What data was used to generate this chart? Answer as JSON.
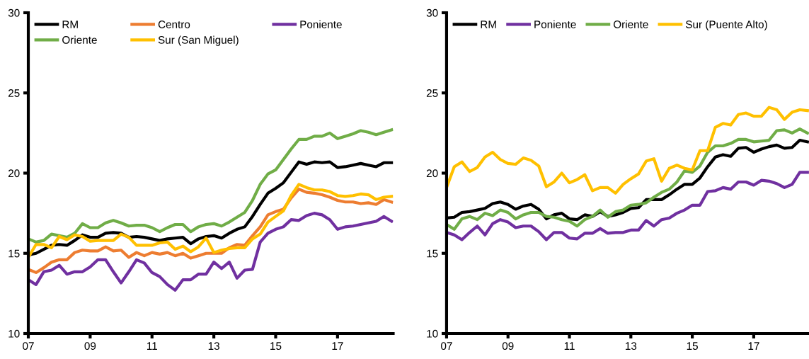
{
  "chart_data": [
    {
      "type": "line",
      "x": [
        2007,
        2007.25,
        2007.5,
        2007.75,
        2008,
        2008.25,
        2008.5,
        2008.75,
        2009,
        2009.25,
        2009.5,
        2009.75,
        2010,
        2010.25,
        2010.5,
        2010.75,
        2011,
        2011.25,
        2011.5,
        2011.75,
        2012,
        2012.25,
        2012.5,
        2012.75,
        2013,
        2013.25,
        2013.5,
        2013.75,
        2014,
        2014.25,
        2014.5,
        2014.75,
        2015,
        2015.25,
        2015.5,
        2015.75,
        2016,
        2016.25,
        2016.5,
        2016.75,
        2017,
        2017.25,
        2017.5,
        2017.75,
        2018,
        2018.25,
        2018.5,
        2018.75
      ],
      "xlim": [
        2007,
        2018.8
      ],
      "xticks": [
        {
          "value": 2007,
          "label": "07"
        },
        {
          "value": 2009,
          "label": "09"
        },
        {
          "value": 2011,
          "label": "11"
        },
        {
          "value": 2013,
          "label": "13"
        },
        {
          "value": 2015,
          "label": "15"
        },
        {
          "value": 2017,
          "label": "17"
        }
      ],
      "ylim": [
        10,
        30
      ],
      "yticks": [
        10,
        15,
        20,
        25,
        30
      ],
      "legend": "top left",
      "grid": false,
      "marker": "none",
      "line_style": "solid",
      "series": [
        {
          "name": "RM",
          "color": "#000000",
          "values": [
            14.9,
            15.0,
            15.25,
            15.5,
            15.55,
            15.5,
            15.8,
            16.15,
            16.0,
            16.0,
            16.25,
            16.3,
            16.25,
            16.0,
            16.05,
            16.0,
            15.9,
            15.8,
            15.9,
            15.95,
            16.0,
            15.6,
            15.9,
            16.05,
            16.1,
            15.95,
            16.25,
            16.5,
            16.65,
            17.3,
            18.05,
            18.75,
            19.05,
            19.4,
            20.05,
            20.7,
            20.55,
            20.7,
            20.65,
            20.7,
            20.35,
            20.4,
            20.5,
            20.6,
            20.5,
            20.4,
            20.65,
            20.65
          ]
        },
        {
          "name": "Centro",
          "color": "#ed7d31",
          "values": [
            14.0,
            13.8,
            14.1,
            14.45,
            14.6,
            14.6,
            15.05,
            15.2,
            15.15,
            15.15,
            15.4,
            15.15,
            15.2,
            14.75,
            15.05,
            14.85,
            15.05,
            14.95,
            15.05,
            14.85,
            15.0,
            14.7,
            14.85,
            15.0,
            15.0,
            15.0,
            15.35,
            15.55,
            15.5,
            16.1,
            16.65,
            17.4,
            17.6,
            17.75,
            18.45,
            19.0,
            18.8,
            18.75,
            18.65,
            18.5,
            18.3,
            18.2,
            18.2,
            18.1,
            18.15,
            18.05,
            18.35,
            18.2
          ]
        },
        {
          "name": "Poniente",
          "color": "#7030a0",
          "values": [
            13.35,
            13.05,
            13.85,
            13.95,
            14.25,
            13.7,
            13.85,
            13.85,
            14.15,
            14.6,
            14.6,
            13.85,
            13.15,
            13.85,
            14.6,
            14.4,
            13.8,
            13.55,
            13.05,
            12.7,
            13.35,
            13.35,
            13.7,
            13.7,
            14.45,
            14.05,
            14.45,
            13.45,
            13.95,
            14.0,
            15.7,
            16.25,
            16.5,
            16.65,
            17.1,
            17.05,
            17.35,
            17.5,
            17.4,
            17.1,
            16.5,
            16.65,
            16.7,
            16.8,
            16.9,
            17.0,
            17.3,
            17.0
          ]
        },
        {
          "name": "Oriente",
          "color": "#70ad47",
          "values": [
            15.9,
            15.7,
            15.8,
            16.2,
            16.1,
            16.0,
            16.25,
            16.85,
            16.6,
            16.6,
            16.9,
            17.05,
            16.9,
            16.7,
            16.75,
            16.75,
            16.6,
            16.35,
            16.6,
            16.8,
            16.8,
            16.35,
            16.65,
            16.8,
            16.85,
            16.7,
            16.95,
            17.25,
            17.55,
            18.3,
            19.3,
            19.95,
            20.2,
            20.85,
            21.5,
            22.1,
            22.1,
            22.3,
            22.3,
            22.5,
            22.15,
            22.3,
            22.45,
            22.65,
            22.55,
            22.4,
            22.55,
            22.7
          ]
        },
        {
          "name": "Sur (San Miguel)",
          "color": "#ffc000",
          "values": [
            14.75,
            15.55,
            15.55,
            15.35,
            16.05,
            15.85,
            16.15,
            16.05,
            15.75,
            15.8,
            15.8,
            15.8,
            16.2,
            16.0,
            15.5,
            15.5,
            15.5,
            15.65,
            15.7,
            15.25,
            15.45,
            15.1,
            15.4,
            15.95,
            15.05,
            15.2,
            15.3,
            15.35,
            15.35,
            15.9,
            16.2,
            16.95,
            17.3,
            17.65,
            18.6,
            19.3,
            19.1,
            18.95,
            18.95,
            18.85,
            18.6,
            18.55,
            18.6,
            18.7,
            18.65,
            18.35,
            18.5,
            18.55
          ]
        }
      ]
    },
    {
      "type": "line",
      "x": [
        2007,
        2007.25,
        2007.5,
        2007.75,
        2008,
        2008.25,
        2008.5,
        2008.75,
        2009,
        2009.25,
        2009.5,
        2009.75,
        2010,
        2010.25,
        2010.5,
        2010.75,
        2011,
        2011.25,
        2011.5,
        2011.75,
        2012,
        2012.25,
        2012.5,
        2012.75,
        2013,
        2013.25,
        2013.5,
        2013.75,
        2014,
        2014.25,
        2014.5,
        2014.75,
        2015,
        2015.25,
        2015.5,
        2015.75,
        2016,
        2016.25,
        2016.5,
        2016.75,
        2017,
        2017.25,
        2017.5,
        2017.75,
        2018,
        2018.25,
        2018.5,
        2018.75
      ],
      "xlim": [
        2007,
        2018.8
      ],
      "xticks": [
        {
          "value": 2007,
          "label": "07"
        },
        {
          "value": 2009,
          "label": "09"
        },
        {
          "value": 2011,
          "label": "11"
        },
        {
          "value": 2013,
          "label": "13"
        },
        {
          "value": 2015,
          "label": "15"
        },
        {
          "value": 2017,
          "label": "17"
        }
      ],
      "ylim": [
        10,
        30
      ],
      "yticks": [
        10,
        15,
        20,
        25,
        30
      ],
      "legend": "top left",
      "grid": false,
      "marker": "none",
      "line_style": "solid",
      "series": [
        {
          "name": "RM",
          "color": "#000000",
          "values": [
            17.2,
            17.25,
            17.55,
            17.6,
            17.7,
            17.8,
            18.1,
            18.2,
            18.05,
            17.75,
            17.95,
            18.05,
            17.75,
            17.15,
            17.4,
            17.5,
            17.15,
            17.1,
            17.4,
            17.3,
            17.6,
            17.3,
            17.4,
            17.55,
            17.8,
            17.85,
            18.35,
            18.35,
            18.35,
            18.65,
            19.0,
            19.3,
            19.3,
            19.7,
            20.4,
            21.0,
            21.15,
            21.05,
            21.55,
            21.6,
            21.3,
            21.5,
            21.65,
            21.75,
            21.55,
            21.6,
            22.05,
            21.95
          ]
        },
        {
          "name": "Poniente",
          "color": "#7030a0",
          "values": [
            16.3,
            16.15,
            15.85,
            16.3,
            16.7,
            16.15,
            16.85,
            17.1,
            16.95,
            16.6,
            16.7,
            16.7,
            16.35,
            15.85,
            16.3,
            16.3,
            15.95,
            15.9,
            16.25,
            16.25,
            16.55,
            16.25,
            16.3,
            16.3,
            16.45,
            16.45,
            17.05,
            16.7,
            17.1,
            17.2,
            17.5,
            17.7,
            18.0,
            18.0,
            18.85,
            18.9,
            19.1,
            19.0,
            19.45,
            19.45,
            19.25,
            19.55,
            19.5,
            19.35,
            19.1,
            19.3,
            20.05,
            20.05
          ]
        },
        {
          "name": "Oriente",
          "color": "#70ad47",
          "values": [
            16.8,
            16.5,
            17.15,
            17.3,
            17.1,
            17.5,
            17.35,
            17.7,
            17.55,
            17.15,
            17.4,
            17.55,
            17.55,
            17.3,
            17.25,
            17.1,
            17.0,
            16.7,
            17.1,
            17.3,
            17.7,
            17.25,
            17.6,
            17.7,
            18.0,
            18.05,
            18.15,
            18.5,
            18.8,
            19.0,
            19.45,
            20.15,
            20.05,
            20.45,
            21.3,
            21.7,
            21.7,
            21.85,
            22.1,
            22.1,
            21.95,
            22.0,
            22.05,
            22.65,
            22.7,
            22.5,
            22.75,
            22.5
          ]
        },
        {
          "name": "Sur (Puente Alto)",
          "color": "#ffc000",
          "values": [
            19.1,
            20.4,
            20.7,
            20.1,
            20.35,
            21.0,
            21.3,
            20.85,
            20.6,
            20.55,
            20.95,
            20.8,
            20.45,
            19.15,
            19.45,
            20.0,
            19.4,
            19.6,
            19.9,
            18.9,
            19.1,
            19.1,
            18.75,
            19.3,
            19.65,
            19.95,
            20.75,
            20.9,
            19.5,
            20.3,
            20.5,
            20.3,
            20.2,
            21.4,
            21.4,
            22.85,
            23.1,
            23.0,
            23.65,
            23.75,
            23.55,
            23.55,
            24.1,
            23.95,
            23.35,
            23.8,
            23.95,
            23.9
          ]
        }
      ]
    }
  ]
}
